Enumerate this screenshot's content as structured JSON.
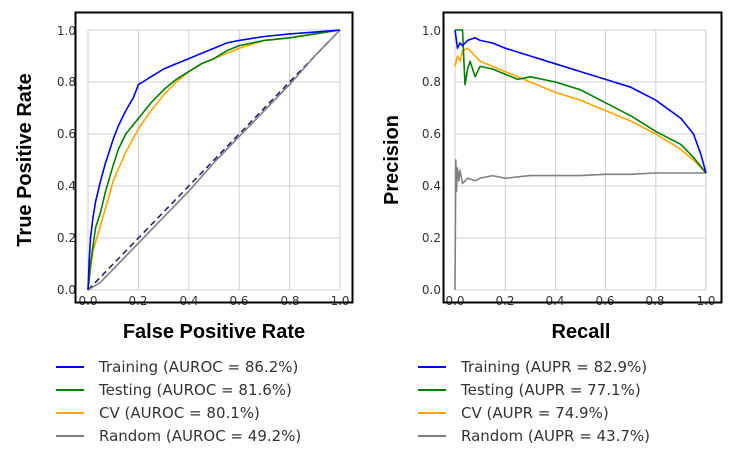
{
  "colors": {
    "training": "#0000ff",
    "testing": "#007f00",
    "cv": "#ffa500",
    "random": "#808080",
    "diagonal": "#191970",
    "grid": "#cfcfcf"
  },
  "chart_data": [
    {
      "type": "line",
      "title": "",
      "xlabel": "False Positive Rate",
      "ylabel": "True Positive Rate",
      "xlim": [
        0,
        1
      ],
      "ylim": [
        0,
        1
      ],
      "xticks": [
        "0.0",
        "0.2",
        "0.4",
        "0.6",
        "0.8",
        "1.0"
      ],
      "yticks": [
        "0.0",
        "0.2",
        "0.4",
        "0.6",
        "0.8",
        "1.0"
      ],
      "grid": true,
      "legend_position": "below",
      "reference_line": {
        "x": [
          0,
          1
        ],
        "y": [
          0,
          1
        ],
        "style": "dashed"
      },
      "series": [
        {
          "name": "Training",
          "legend": "Training (AUROC = 86.2%)",
          "color_key": "training",
          "x": [
            0,
            0.005,
            0.01,
            0.02,
            0.03,
            0.05,
            0.07,
            0.1,
            0.12,
            0.15,
            0.18,
            0.2,
            0.25,
            0.3,
            0.35,
            0.4,
            0.45,
            0.5,
            0.55,
            0.6,
            0.7,
            0.8,
            0.9,
            0.95,
            1.0
          ],
          "y": [
            0,
            0.12,
            0.2,
            0.28,
            0.34,
            0.42,
            0.49,
            0.58,
            0.63,
            0.69,
            0.74,
            0.79,
            0.82,
            0.85,
            0.87,
            0.89,
            0.91,
            0.93,
            0.95,
            0.96,
            0.975,
            0.985,
            0.992,
            0.996,
            1.0
          ]
        },
        {
          "name": "Testing",
          "legend": "Testing (AUROC = 81.6%)",
          "color_key": "testing",
          "x": [
            0,
            0.01,
            0.02,
            0.03,
            0.05,
            0.07,
            0.1,
            0.12,
            0.15,
            0.2,
            0.25,
            0.3,
            0.35,
            0.4,
            0.45,
            0.5,
            0.55,
            0.6,
            0.7,
            0.8,
            0.9,
            1.0
          ],
          "y": [
            0,
            0.1,
            0.17,
            0.24,
            0.3,
            0.38,
            0.48,
            0.54,
            0.6,
            0.66,
            0.72,
            0.77,
            0.81,
            0.84,
            0.87,
            0.89,
            0.92,
            0.94,
            0.96,
            0.97,
            0.985,
            1.0
          ]
        },
        {
          "name": "CV",
          "legend": "CV (AUROC = 80.1%)",
          "color_key": "cv",
          "x": [
            0,
            0.01,
            0.02,
            0.05,
            0.08,
            0.1,
            0.15,
            0.2,
            0.25,
            0.3,
            0.35,
            0.4,
            0.45,
            0.5,
            0.55,
            0.6,
            0.7,
            0.8,
            0.9,
            1.0
          ],
          "y": [
            0,
            0.08,
            0.15,
            0.25,
            0.35,
            0.42,
            0.53,
            0.62,
            0.69,
            0.75,
            0.8,
            0.84,
            0.87,
            0.89,
            0.91,
            0.93,
            0.96,
            0.97,
            0.985,
            1.0
          ]
        },
        {
          "name": "Random",
          "legend": "Random (AUROC = 49.2%)",
          "color_key": "random",
          "x": [
            0,
            0.05,
            0.1,
            0.2,
            0.3,
            0.4,
            0.5,
            0.6,
            0.7,
            0.8,
            0.9,
            1.0
          ],
          "y": [
            0,
            0.03,
            0.08,
            0.18,
            0.28,
            0.38,
            0.49,
            0.59,
            0.69,
            0.79,
            0.9,
            1.0
          ]
        }
      ]
    },
    {
      "type": "line",
      "title": "",
      "xlabel": "Recall",
      "ylabel": "Precision",
      "xlim": [
        0,
        1
      ],
      "ylim": [
        0,
        1
      ],
      "xticks": [
        "0.0",
        "0.2",
        "0.4",
        "0.6",
        "0.8",
        "1.0"
      ],
      "yticks": [
        "0.0",
        "0.2",
        "0.4",
        "0.6",
        "0.8",
        "1.0"
      ],
      "grid": true,
      "legend_position": "below",
      "series": [
        {
          "name": "Training",
          "legend": "Training (AUPR = 82.9%)",
          "color_key": "training",
          "x": [
            0.0,
            0.01,
            0.02,
            0.03,
            0.05,
            0.08,
            0.1,
            0.15,
            0.2,
            0.3,
            0.4,
            0.5,
            0.6,
            0.7,
            0.8,
            0.9,
            0.95,
            0.98,
            1.0
          ],
          "y": [
            1.0,
            0.93,
            0.95,
            0.94,
            0.96,
            0.97,
            0.96,
            0.95,
            0.93,
            0.9,
            0.87,
            0.84,
            0.81,
            0.78,
            0.73,
            0.66,
            0.6,
            0.52,
            0.45
          ]
        },
        {
          "name": "Testing",
          "legend": "Testing (AUPR = 77.1%)",
          "color_key": "testing",
          "x": [
            0.0,
            0.01,
            0.02,
            0.03,
            0.04,
            0.05,
            0.06,
            0.08,
            0.1,
            0.15,
            0.2,
            0.25,
            0.3,
            0.4,
            0.5,
            0.6,
            0.7,
            0.8,
            0.9,
            0.95,
            1.0
          ],
          "y": [
            1.0,
            1.0,
            1.0,
            1.0,
            0.79,
            0.85,
            0.88,
            0.82,
            0.86,
            0.85,
            0.83,
            0.81,
            0.82,
            0.8,
            0.77,
            0.72,
            0.67,
            0.61,
            0.56,
            0.51,
            0.45
          ]
        },
        {
          "name": "CV",
          "legend": "CV (AUPR = 74.9%)",
          "color_key": "cv",
          "x": [
            0.0,
            0.01,
            0.02,
            0.03,
            0.05,
            0.08,
            0.1,
            0.15,
            0.2,
            0.3,
            0.4,
            0.5,
            0.6,
            0.7,
            0.8,
            0.9,
            0.95,
            1.0
          ],
          "y": [
            0.86,
            0.9,
            0.88,
            0.92,
            0.93,
            0.9,
            0.88,
            0.86,
            0.84,
            0.8,
            0.76,
            0.73,
            0.69,
            0.65,
            0.6,
            0.54,
            0.5,
            0.45
          ]
        },
        {
          "name": "Random",
          "legend": "Random (AUPR = 43.7%)",
          "color_key": "random",
          "x": [
            0.0,
            0.003,
            0.006,
            0.01,
            0.015,
            0.02,
            0.03,
            0.05,
            0.08,
            0.1,
            0.15,
            0.2,
            0.3,
            0.4,
            0.5,
            0.6,
            0.7,
            0.8,
            0.9,
            1.0
          ],
          "y": [
            0.0,
            0.5,
            0.38,
            0.47,
            0.42,
            0.46,
            0.41,
            0.43,
            0.42,
            0.43,
            0.44,
            0.43,
            0.44,
            0.44,
            0.44,
            0.445,
            0.445,
            0.45,
            0.45,
            0.45
          ]
        }
      ]
    }
  ]
}
